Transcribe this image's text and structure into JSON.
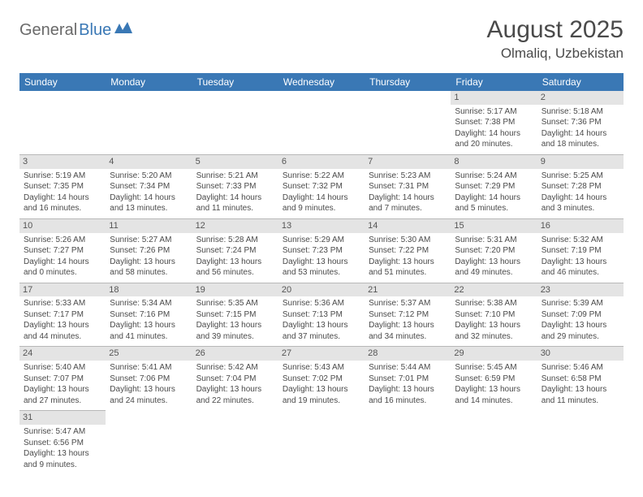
{
  "logo": {
    "part1": "General",
    "part2": "Blue"
  },
  "title": "August 2025",
  "location": "Olmaliq, Uzbekistan",
  "colors": {
    "header_bg": "#3a78b5",
    "header_text": "#ffffff",
    "daynum_bg": "#e4e4e4",
    "border": "#b8b8b8",
    "text": "#4a4a4a"
  },
  "weekdays": [
    "Sunday",
    "Monday",
    "Tuesday",
    "Wednesday",
    "Thursday",
    "Friday",
    "Saturday"
  ],
  "weeks": [
    [
      null,
      null,
      null,
      null,
      null,
      {
        "n": "1",
        "sr": "Sunrise: 5:17 AM",
        "ss": "Sunset: 7:38 PM",
        "d1": "Daylight: 14 hours",
        "d2": "and 20 minutes."
      },
      {
        "n": "2",
        "sr": "Sunrise: 5:18 AM",
        "ss": "Sunset: 7:36 PM",
        "d1": "Daylight: 14 hours",
        "d2": "and 18 minutes."
      }
    ],
    [
      {
        "n": "3",
        "sr": "Sunrise: 5:19 AM",
        "ss": "Sunset: 7:35 PM",
        "d1": "Daylight: 14 hours",
        "d2": "and 16 minutes."
      },
      {
        "n": "4",
        "sr": "Sunrise: 5:20 AM",
        "ss": "Sunset: 7:34 PM",
        "d1": "Daylight: 14 hours",
        "d2": "and 13 minutes."
      },
      {
        "n": "5",
        "sr": "Sunrise: 5:21 AM",
        "ss": "Sunset: 7:33 PM",
        "d1": "Daylight: 14 hours",
        "d2": "and 11 minutes."
      },
      {
        "n": "6",
        "sr": "Sunrise: 5:22 AM",
        "ss": "Sunset: 7:32 PM",
        "d1": "Daylight: 14 hours",
        "d2": "and 9 minutes."
      },
      {
        "n": "7",
        "sr": "Sunrise: 5:23 AM",
        "ss": "Sunset: 7:31 PM",
        "d1": "Daylight: 14 hours",
        "d2": "and 7 minutes."
      },
      {
        "n": "8",
        "sr": "Sunrise: 5:24 AM",
        "ss": "Sunset: 7:29 PM",
        "d1": "Daylight: 14 hours",
        "d2": "and 5 minutes."
      },
      {
        "n": "9",
        "sr": "Sunrise: 5:25 AM",
        "ss": "Sunset: 7:28 PM",
        "d1": "Daylight: 14 hours",
        "d2": "and 3 minutes."
      }
    ],
    [
      {
        "n": "10",
        "sr": "Sunrise: 5:26 AM",
        "ss": "Sunset: 7:27 PM",
        "d1": "Daylight: 14 hours",
        "d2": "and 0 minutes."
      },
      {
        "n": "11",
        "sr": "Sunrise: 5:27 AM",
        "ss": "Sunset: 7:26 PM",
        "d1": "Daylight: 13 hours",
        "d2": "and 58 minutes."
      },
      {
        "n": "12",
        "sr": "Sunrise: 5:28 AM",
        "ss": "Sunset: 7:24 PM",
        "d1": "Daylight: 13 hours",
        "d2": "and 56 minutes."
      },
      {
        "n": "13",
        "sr": "Sunrise: 5:29 AM",
        "ss": "Sunset: 7:23 PM",
        "d1": "Daylight: 13 hours",
        "d2": "and 53 minutes."
      },
      {
        "n": "14",
        "sr": "Sunrise: 5:30 AM",
        "ss": "Sunset: 7:22 PM",
        "d1": "Daylight: 13 hours",
        "d2": "and 51 minutes."
      },
      {
        "n": "15",
        "sr": "Sunrise: 5:31 AM",
        "ss": "Sunset: 7:20 PM",
        "d1": "Daylight: 13 hours",
        "d2": "and 49 minutes."
      },
      {
        "n": "16",
        "sr": "Sunrise: 5:32 AM",
        "ss": "Sunset: 7:19 PM",
        "d1": "Daylight: 13 hours",
        "d2": "and 46 minutes."
      }
    ],
    [
      {
        "n": "17",
        "sr": "Sunrise: 5:33 AM",
        "ss": "Sunset: 7:17 PM",
        "d1": "Daylight: 13 hours",
        "d2": "and 44 minutes."
      },
      {
        "n": "18",
        "sr": "Sunrise: 5:34 AM",
        "ss": "Sunset: 7:16 PM",
        "d1": "Daylight: 13 hours",
        "d2": "and 41 minutes."
      },
      {
        "n": "19",
        "sr": "Sunrise: 5:35 AM",
        "ss": "Sunset: 7:15 PM",
        "d1": "Daylight: 13 hours",
        "d2": "and 39 minutes."
      },
      {
        "n": "20",
        "sr": "Sunrise: 5:36 AM",
        "ss": "Sunset: 7:13 PM",
        "d1": "Daylight: 13 hours",
        "d2": "and 37 minutes."
      },
      {
        "n": "21",
        "sr": "Sunrise: 5:37 AM",
        "ss": "Sunset: 7:12 PM",
        "d1": "Daylight: 13 hours",
        "d2": "and 34 minutes."
      },
      {
        "n": "22",
        "sr": "Sunrise: 5:38 AM",
        "ss": "Sunset: 7:10 PM",
        "d1": "Daylight: 13 hours",
        "d2": "and 32 minutes."
      },
      {
        "n": "23",
        "sr": "Sunrise: 5:39 AM",
        "ss": "Sunset: 7:09 PM",
        "d1": "Daylight: 13 hours",
        "d2": "and 29 minutes."
      }
    ],
    [
      {
        "n": "24",
        "sr": "Sunrise: 5:40 AM",
        "ss": "Sunset: 7:07 PM",
        "d1": "Daylight: 13 hours",
        "d2": "and 27 minutes."
      },
      {
        "n": "25",
        "sr": "Sunrise: 5:41 AM",
        "ss": "Sunset: 7:06 PM",
        "d1": "Daylight: 13 hours",
        "d2": "and 24 minutes."
      },
      {
        "n": "26",
        "sr": "Sunrise: 5:42 AM",
        "ss": "Sunset: 7:04 PM",
        "d1": "Daylight: 13 hours",
        "d2": "and 22 minutes."
      },
      {
        "n": "27",
        "sr": "Sunrise: 5:43 AM",
        "ss": "Sunset: 7:02 PM",
        "d1": "Daylight: 13 hours",
        "d2": "and 19 minutes."
      },
      {
        "n": "28",
        "sr": "Sunrise: 5:44 AM",
        "ss": "Sunset: 7:01 PM",
        "d1": "Daylight: 13 hours",
        "d2": "and 16 minutes."
      },
      {
        "n": "29",
        "sr": "Sunrise: 5:45 AM",
        "ss": "Sunset: 6:59 PM",
        "d1": "Daylight: 13 hours",
        "d2": "and 14 minutes."
      },
      {
        "n": "30",
        "sr": "Sunrise: 5:46 AM",
        "ss": "Sunset: 6:58 PM",
        "d1": "Daylight: 13 hours",
        "d2": "and 11 minutes."
      }
    ],
    [
      {
        "n": "31",
        "sr": "Sunrise: 5:47 AM",
        "ss": "Sunset: 6:56 PM",
        "d1": "Daylight: 13 hours",
        "d2": "and 9 minutes."
      },
      null,
      null,
      null,
      null,
      null,
      null
    ]
  ]
}
